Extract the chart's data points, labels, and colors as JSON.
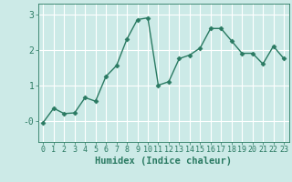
{
  "x": [
    0,
    1,
    2,
    3,
    4,
    5,
    6,
    7,
    8,
    9,
    10,
    11,
    12,
    13,
    14,
    15,
    16,
    17,
    18,
    19,
    20,
    21,
    22,
    23
  ],
  "y": [
    -0.05,
    0.35,
    0.2,
    0.22,
    0.65,
    0.55,
    1.25,
    1.55,
    2.3,
    2.85,
    2.9,
    1.0,
    1.1,
    1.75,
    1.85,
    2.05,
    2.6,
    2.6,
    2.25,
    1.9,
    1.9,
    1.6,
    2.1,
    1.75
  ],
  "line_color": "#2a7a62",
  "marker": "D",
  "marker_size": 2.5,
  "xlabel": "Humidex (Indice chaleur)",
  "ylim": [
    -0.6,
    3.3
  ],
  "xlim": [
    -0.5,
    23.5
  ],
  "yticks": [
    0,
    1,
    2,
    3
  ],
  "ytick_labels": [
    "-0",
    "1",
    "2",
    "3"
  ],
  "xticks": [
    0,
    1,
    2,
    3,
    4,
    5,
    6,
    7,
    8,
    9,
    10,
    11,
    12,
    13,
    14,
    15,
    16,
    17,
    18,
    19,
    20,
    21,
    22,
    23
  ],
  "bg_color": "#cceae7",
  "grid_color": "#ffffff",
  "grid_color2": "#c8e0dc",
  "line_width": 1.0,
  "xlabel_fontsize": 7.5,
  "tick_fontsize": 6.0
}
